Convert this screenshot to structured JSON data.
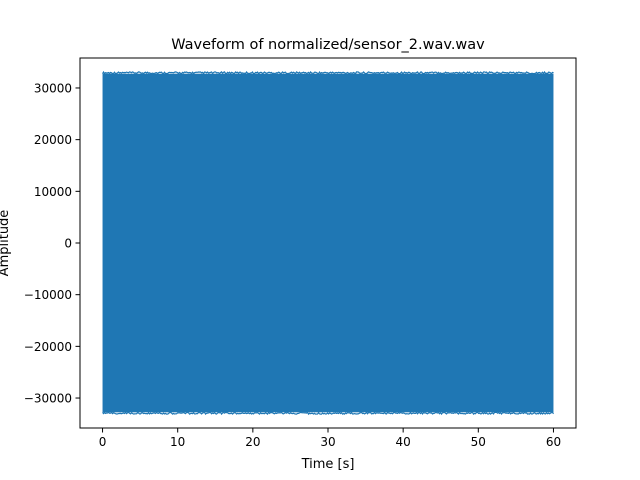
{
  "chart_data": {
    "type": "line",
    "title": "Waveform of normalized/sensor_2.wav.wav",
    "xlabel": "Time [s]",
    "ylabel": "Amplitude",
    "xlim": [
      -3,
      63
    ],
    "ylim": [
      -35800,
      35800
    ],
    "x_ticks": [
      0,
      10,
      20,
      30,
      40,
      50,
      60
    ],
    "y_ticks": [
      -30000,
      -20000,
      -10000,
      0,
      10000,
      20000,
      30000
    ],
    "x_tick_labels": [
      "0",
      "10",
      "20",
      "30",
      "40",
      "50",
      "60"
    ],
    "y_tick_labels": [
      "−30000",
      "−20000",
      "−10000",
      "0",
      "10000",
      "20000",
      "30000"
    ],
    "grid": false,
    "series": [
      {
        "color": "#1f77b4",
        "x_range": [
          0,
          60
        ],
        "y_range": [
          -32768,
          32767
        ]
      }
    ]
  }
}
